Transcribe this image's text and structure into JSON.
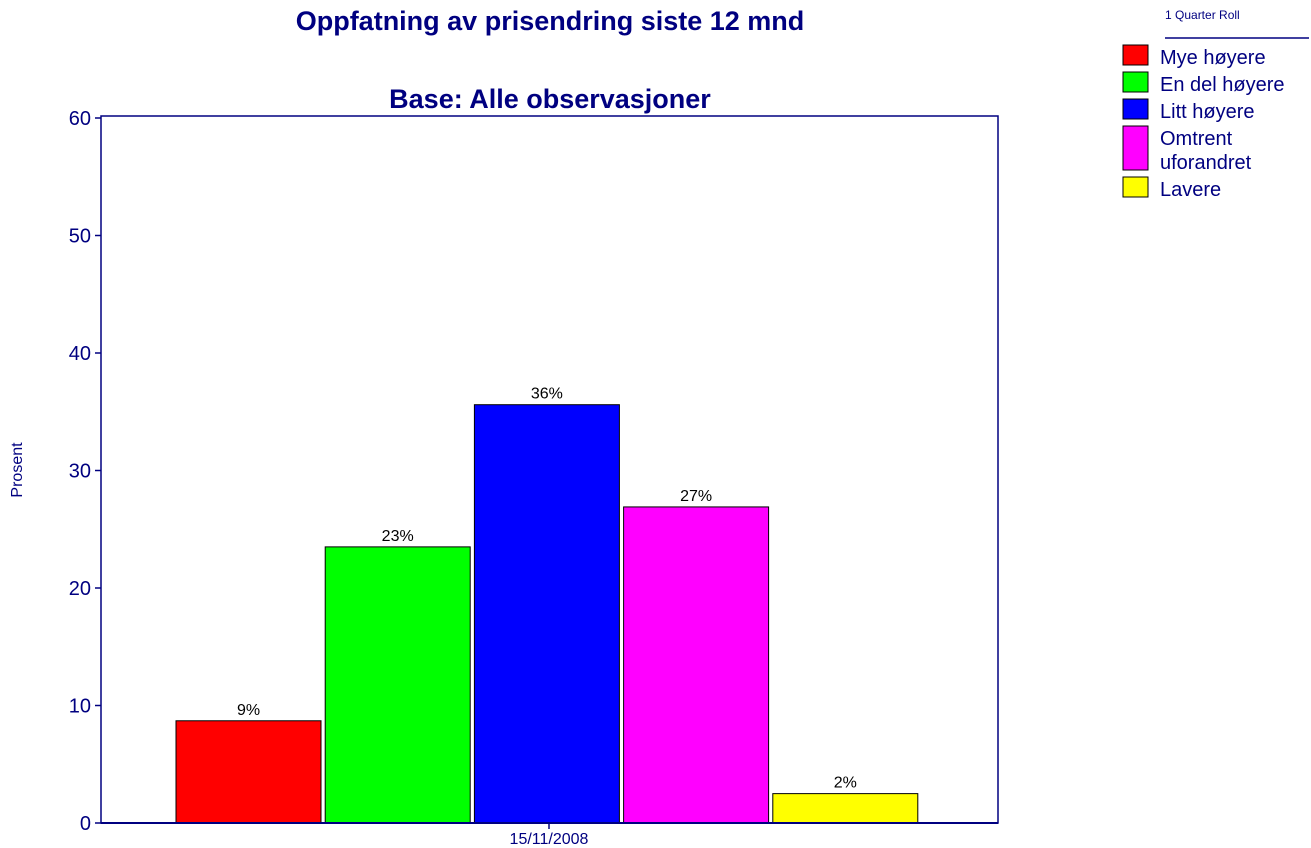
{
  "chart_data": {
    "type": "bar",
    "title": "Oppfatning av prisendring siste 12 mnd",
    "subtitle": "Base:  Alle observasjoner",
    "ylabel": "Prosent",
    "ylim": [
      0,
      60
    ],
    "yticks": [
      "0",
      "10",
      "20",
      "30",
      "40",
      "50",
      "60"
    ],
    "categories": [
      "15/11/2008"
    ],
    "legend_title": "1 Quarter Roll",
    "legend_position": "top-right",
    "grid": false,
    "series": [
      {
        "name": "Mye høyere",
        "values": [
          8.7
        ],
        "label": "9%",
        "color": "#ff0000"
      },
      {
        "name": "En del høyere",
        "values": [
          23.5
        ],
        "label": "23%",
        "color": "#00ff00"
      },
      {
        "name": "Litt høyere",
        "values": [
          35.6
        ],
        "label": "36%",
        "color": "#0000ff"
      },
      {
        "name": "Omtrent uforandret",
        "name_lines": [
          "Omtrent",
          "uforandret"
        ],
        "values": [
          26.9
        ],
        "label": "27%",
        "color": "#ff00ff"
      },
      {
        "name": "Lavere",
        "values": [
          2.5
        ],
        "label": "2%",
        "color": "#ffff00"
      }
    ]
  }
}
